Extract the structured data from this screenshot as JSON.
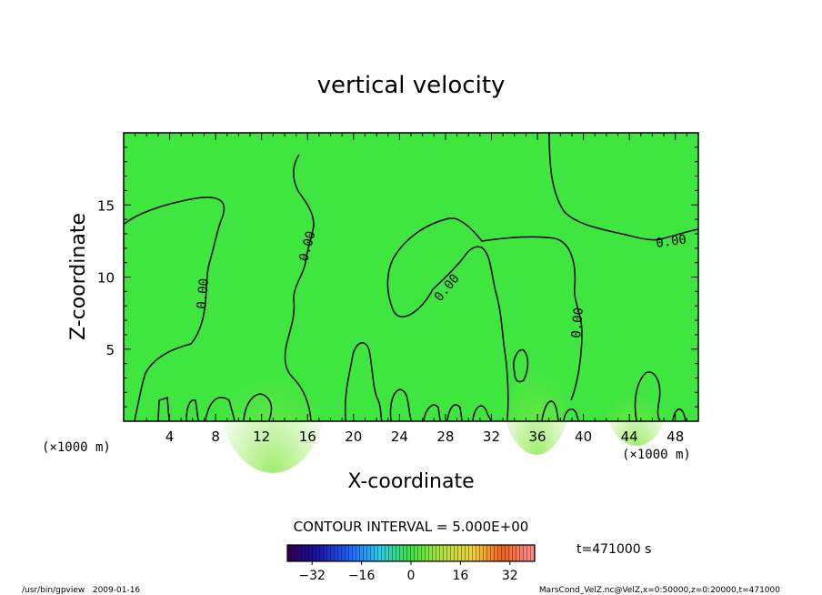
{
  "chart_data": {
    "type": "heatmap",
    "title": "vertical velocity",
    "xlabel": "X-coordinate",
    "ylabel": "Z-coordinate",
    "x_unit": "(×1000 m)",
    "y_unit": "(×1000 m)",
    "xlim": [
      0,
      50
    ],
    "ylim": [
      0,
      20
    ],
    "xticks": [
      4,
      8,
      12,
      16,
      20,
      24,
      28,
      32,
      36,
      40,
      44,
      48
    ],
    "yticks": [
      5,
      10,
      15
    ],
    "contour_interval_label": "CONTOUR INTERVAL = 5.000E+00",
    "contour_labels": [
      "0.00",
      "0.00",
      "0.00",
      "0.00",
      "0.00"
    ],
    "time_label": "t=471000 s",
    "colorbar": {
      "ticks": [
        "−32",
        "−16",
        "0",
        "16",
        "32"
      ],
      "range": [
        -40,
        40
      ]
    },
    "colors": {
      "field": "#3fe63f",
      "field_warm": "#7fe84a",
      "contour": "#000000"
    },
    "footer_left": "/usr/bin/gpview   2009-01-16",
    "footer_right": "MarsCond_VelZ.nc@VelZ,x=0:50000,z=0:20000,t=471000"
  }
}
